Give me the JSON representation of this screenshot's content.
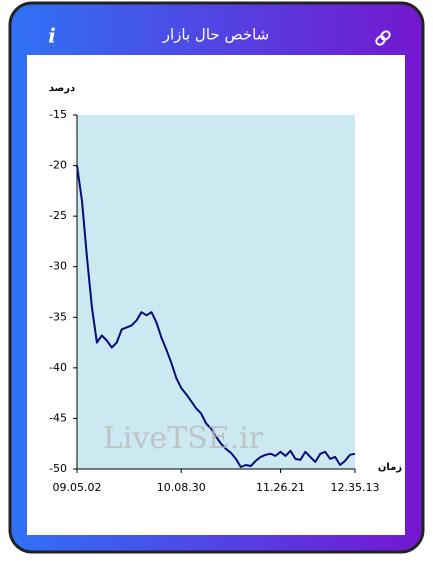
{
  "header": {
    "title": "شاخص حال بازار",
    "info_icon": "i"
  },
  "watermark": "LiveTSE.ir",
  "chart_data": {
    "type": "line",
    "y_label": "درصد",
    "x_label": "زمان",
    "categories": [
      "09.05.02",
      null,
      null,
      null,
      null,
      null,
      null,
      null,
      null,
      null,
      null,
      null,
      null,
      null,
      null,
      null,
      null,
      null,
      null,
      null,
      null,
      "10.08.30",
      null,
      null,
      null,
      null,
      null,
      null,
      null,
      null,
      null,
      null,
      null,
      null,
      null,
      null,
      null,
      null,
      null,
      null,
      null,
      "11.26.21",
      null,
      null,
      null,
      null,
      null,
      null,
      null,
      null,
      null,
      null,
      null,
      null,
      null,
      null,
      "12.35.13"
    ],
    "series": [
      {
        "color": "#0a0a7a",
        "values": [
          -20,
          -23.5,
          -29,
          -34,
          -37.5,
          -36.8,
          -37.3,
          -38,
          -37.5,
          -36.2,
          -36,
          -35.8,
          -35.3,
          -34.5,
          -34.8,
          -34.5,
          -35.5,
          -37,
          -38.2,
          -39.5,
          -41,
          -42,
          -42.6,
          -43.3,
          -44,
          -44.5,
          -45.5,
          -46,
          -46.8,
          -47.5,
          -48,
          -48.4,
          -49,
          -49.8,
          -49.6,
          -49.7,
          -49.2,
          -48.8,
          -48.6,
          -48.5,
          -48.7,
          -48.3,
          -48.7,
          -48.2,
          -49,
          -49.1,
          -48.3,
          -48.8,
          -49.3,
          -48.5,
          -48.3,
          -49,
          -48.8,
          -49.6,
          -49.2,
          -48.6,
          -48.5
        ]
      }
    ],
    "ylim": [
      -50,
      -15
    ],
    "yticks": [
      -50,
      -45,
      -40,
      -35,
      -30,
      -25,
      -20,
      -15
    ],
    "plot_background": "#cce9f1",
    "grid": false
  }
}
